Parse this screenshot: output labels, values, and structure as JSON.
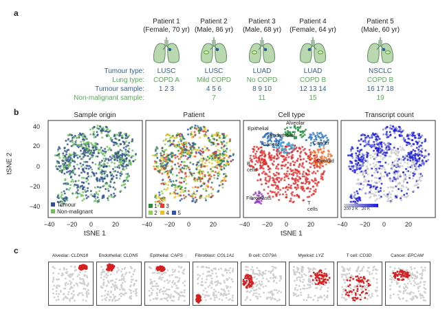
{
  "panel_a": {
    "label": "a",
    "patients": [
      {
        "name": "Patient 1",
        "info": "(Female, 70 yr)",
        "tumour_type": "LUSC",
        "lung_type": "COPD A",
        "tumour_sample": "1  2  3",
        "nonmal_sample": ""
      },
      {
        "name": "Patient 2",
        "info": "(Male, 86 yr)",
        "tumour_type": "LUSC",
        "lung_type": "Mild COPD",
        "tumour_sample": "4  5  6",
        "nonmal_sample": "7"
      },
      {
        "name": "Patient 3",
        "info": "(Male, 68 yr)",
        "tumour_type": "LUAD",
        "lung_type": "No COPD",
        "tumour_sample": "8  9  10",
        "nonmal_sample": "11"
      },
      {
        "name": "Patient 4",
        "info": "(Female, 64 yr)",
        "tumour_type": "LUAD",
        "lung_type": "COPD B",
        "tumour_sample": "12  13  14",
        "nonmal_sample": "15"
      },
      {
        "name": "Patient 5",
        "info": "(Male, 60 yr)",
        "tumour_type": "NSCLC",
        "lung_type": "COPD B",
        "tumour_sample": "16  17  18",
        "nonmal_sample": "19"
      }
    ],
    "row_labels": {
      "tumour_type": "Tumour type:",
      "lung_type": "Lung type:",
      "tumour_sample": "Tumour sample:",
      "nonmal_sample": "Non-malignant sample:"
    }
  },
  "panel_b": {
    "label": "b",
    "ylabel": "tSNE 2",
    "xlabel": "tSNE 1",
    "xticks": [
      "−40",
      "−20",
      "0",
      "20"
    ],
    "yticks": [
      "40",
      "20",
      "0",
      "−20",
      "−40"
    ],
    "titles": [
      "Sample origin",
      "Patient",
      "Cell type",
      "Transcript count"
    ],
    "origin_legend": [
      "Tumour",
      "Non-malignant"
    ],
    "patient_legend": [
      "1",
      "3",
      "2",
      "4",
      "5"
    ],
    "cell_labels": [
      "Alveolar",
      "Epithelial",
      "Endothelial",
      "Cancer",
      "Cancer",
      "B cells",
      "Myeloid",
      "Fibroblasts",
      "T cells"
    ],
    "count_legend": [
      "200",
      "2 K",
      "20 K"
    ],
    "colors": {
      "tumour": "#2f4f8f",
      "nonmal": "#6cbf5a",
      "count_low": "#c8c8c8",
      "count_high": "#1a1ad8"
    }
  },
  "panel_c": {
    "label": "c",
    "markers": [
      {
        "type": "Alveolar:",
        "gene": "CLDN18"
      },
      {
        "type": "Endothelial:",
        "gene": "CLDN5"
      },
      {
        "type": "Epithelial:",
        "gene": "CAPS"
      },
      {
        "type": "Fibroblast:",
        "gene": "COL1A1"
      },
      {
        "type": "B cell:",
        "gene": "CD79A"
      },
      {
        "type": "Myeloid:",
        "gene": "LYZ"
      },
      {
        "type": "T cell:",
        "gene": "CD3D"
      },
      {
        "type": "Cancer:",
        "gene": "EPCAM"
      }
    ]
  }
}
